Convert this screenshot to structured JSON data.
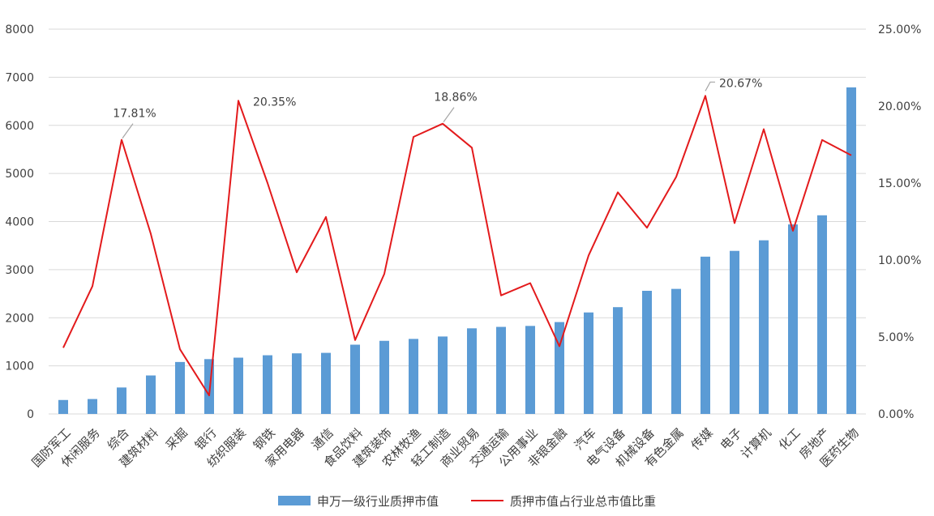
{
  "chart_data": {
    "type": "bar+line",
    "categories": [
      "国防军工",
      "休闲服务",
      "综合",
      "建筑材料",
      "采掘",
      "银行",
      "纺织服装",
      "钢铁",
      "家用电器",
      "通信",
      "食品饮料",
      "建筑装饰",
      "农林牧渔",
      "轻工制造",
      "商业贸易",
      "交通运输",
      "公用事业",
      "非银金融",
      "汽车",
      "电气设备",
      "机械设备",
      "有色金属",
      "传媒",
      "电子",
      "计算机",
      "化工",
      "房地产",
      "医药生物"
    ],
    "series": [
      {
        "name": "申万一级行业质押市值",
        "type": "bar",
        "axis": "left",
        "color": "#5B9BD5",
        "values": [
          290,
          310,
          550,
          800,
          1080,
          1140,
          1170,
          1220,
          1260,
          1270,
          1440,
          1520,
          1560,
          1610,
          1780,
          1810,
          1830,
          1910,
          2110,
          2220,
          2560,
          2600,
          3270,
          3390,
          3610,
          3940,
          4130,
          6790
        ]
      },
      {
        "name": "质押市值占行业总市值比重",
        "type": "line",
        "axis": "right",
        "color": "#E31A1C",
        "values": [
          4.3,
          8.3,
          17.81,
          11.7,
          4.2,
          1.2,
          20.35,
          15.0,
          9.2,
          12.8,
          4.8,
          9.1,
          18.0,
          18.86,
          17.3,
          7.7,
          8.5,
          4.4,
          10.3,
          14.4,
          12.1,
          15.4,
          20.67,
          12.4,
          18.5,
          11.9,
          17.8,
          16.8
        ]
      }
    ],
    "y_left": {
      "min": 0,
      "max": 8000,
      "ticks": [
        "0",
        "1000",
        "2000",
        "3000",
        "4000",
        "5000",
        "6000",
        "7000",
        "8000"
      ]
    },
    "y_right": {
      "min": 0,
      "max": 25,
      "ticks": [
        "0.00%",
        "5.00%",
        "10.00%",
        "15.00%",
        "20.00%",
        "25.00%"
      ]
    },
    "annotations": [
      {
        "index": 2,
        "text": "17.81%"
      },
      {
        "index": 6,
        "text": "20.35%"
      },
      {
        "index": 13,
        "text": "18.86%"
      },
      {
        "index": 22,
        "text": "20.67%"
      }
    ],
    "grid": true,
    "legend_position": "bottom"
  }
}
